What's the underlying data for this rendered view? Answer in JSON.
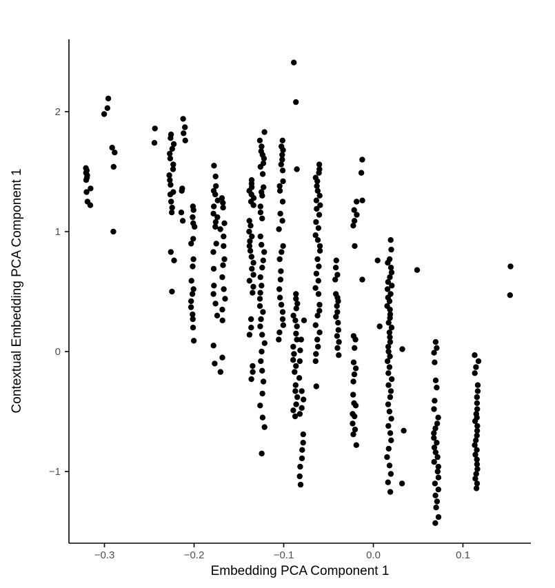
{
  "figure": {
    "background": "#ffffff",
    "point_color": "#000000",
    "axis_line_color": "#000000",
    "tick_label_color": "#4d4d4d",
    "axis_title_color": "#000000"
  },
  "chart_data": {
    "type": "scatter",
    "title": "",
    "xlabel": "Embedding PCA Component 1",
    "ylabel": "Contextual Embedding PCA Component 1",
    "xlim": [
      -0.34,
      0.177
    ],
    "ylim": [
      -1.57,
      2.6
    ],
    "grid": "off",
    "legend": "none",
    "x_ticks": {
      "values": [
        -0.3,
        -0.2,
        -0.1,
        0.0,
        0.1
      ],
      "labels": [
        "−0.3",
        "−0.2",
        "−0.1",
        "0.0",
        "0.1"
      ]
    },
    "y_ticks": {
      "values": [
        -1,
        0,
        1,
        2
      ],
      "labels": [
        "−1",
        "0",
        "1",
        "2"
      ]
    },
    "series": [
      {
        "x": -0.318,
        "ys": [
          1.53,
          1.51,
          1.49,
          1.47,
          1.45,
          1.43,
          1.36,
          1.33,
          1.25,
          1.22
        ]
      },
      {
        "x": -0.298,
        "ys": [
          2.11,
          2.03,
          1.98
        ]
      },
      {
        "x": -0.289,
        "ys": [
          1.7,
          1.66,
          1.54,
          1.0
        ]
      },
      {
        "x": -0.244,
        "ys": [
          1.86,
          1.74
        ]
      },
      {
        "x": -0.225,
        "ys": [
          1.81,
          1.78,
          1.73,
          1.69,
          1.65,
          1.61,
          1.56,
          1.52,
          1.47,
          1.43,
          1.39,
          1.33,
          1.31,
          1.25,
          1.2,
          1.16,
          0.83,
          0.76,
          0.5
        ]
      },
      {
        "x": -0.212,
        "ys": [
          1.94,
          1.87,
          1.82,
          1.76,
          1.36,
          1.34,
          1.16,
          1.09
        ]
      },
      {
        "x": -0.202,
        "ys": [
          1.21,
          1.18,
          1.12,
          1.07,
          1.04,
          0.94,
          0.9,
          0.77,
          0.71,
          0.59,
          0.52,
          0.48,
          0.42,
          0.37,
          0.31,
          0.27,
          0.2,
          0.09
        ]
      },
      {
        "x": -0.176,
        "ys": [
          1.55,
          1.46,
          1.38,
          1.34,
          1.31,
          1.26,
          1.21,
          1.15,
          1.12,
          1.08,
          1.04,
          0.9,
          0.83,
          0.69,
          0.55,
          0.48,
          0.4,
          0.3,
          0.05,
          -0.1
        ]
      },
      {
        "x": -0.168,
        "ys": [
          1.28,
          1.24,
          1.2,
          1.07,
          1.02,
          0.96,
          0.88,
          0.77,
          0.72,
          0.62,
          0.52,
          0.44,
          0.35,
          0.26,
          -0.05,
          -0.17
        ]
      },
      {
        "x": -0.136,
        "ys": [
          1.43,
          1.4,
          1.37,
          1.34,
          1.31,
          1.28,
          1.25,
          1.22,
          1.09,
          1.05,
          1.0,
          0.96,
          0.92,
          0.88,
          0.84,
          0.79,
          0.74,
          0.69,
          0.64,
          0.59,
          0.54,
          0.49,
          0.27,
          0.2,
          0.14,
          -0.12,
          -0.17,
          -0.23
        ]
      },
      {
        "x": -0.124,
        "ys": [
          1.83,
          1.76,
          1.71,
          1.67,
          1.64,
          1.61,
          1.57,
          1.54,
          1.48,
          1.37,
          1.33,
          1.3,
          1.21,
          1.16,
          1.11,
          0.96,
          0.89,
          0.83,
          0.76,
          0.7,
          0.62,
          0.55,
          0.49,
          0.44,
          0.38,
          0.33,
          0.27,
          0.21,
          0.14,
          0.07,
          0.0,
          -0.08,
          -0.16,
          -0.25,
          -0.35,
          -0.45,
          -0.55,
          -0.63,
          -0.85
        ]
      },
      {
        "x": -0.103,
        "ys": [
          1.76,
          1.71,
          1.68,
          1.64,
          1.6,
          1.56,
          1.51,
          1.42,
          1.38,
          1.34,
          1.25,
          1.15,
          1.09,
          1.02,
          0.88,
          0.83,
          0.77,
          0.67,
          0.6,
          0.52,
          0.45,
          0.39,
          0.33,
          0.27,
          0.22,
          0.16,
          0.1
        ]
      },
      {
        "x": -0.087,
        "ys": [
          2.41,
          2.08,
          1.52,
          0.48,
          0.44,
          0.4,
          0.36,
          0.3,
          0.26,
          0.21,
          0.15,
          0.1,
          0.04,
          -0.02,
          -0.07,
          -0.12,
          -0.17,
          -0.28,
          -0.33,
          -0.38,
          -0.44,
          -0.49,
          -0.54
        ]
      },
      {
        "x": -0.08,
        "ys": [
          0.26,
          0.1,
          0.01,
          -0.08,
          -0.22,
          -0.33,
          -0.4,
          -0.47,
          -0.52,
          -0.69,
          -0.76,
          -0.82,
          -0.89,
          -0.96,
          -1.04,
          -1.11
        ]
      },
      {
        "x": -0.062,
        "ys": [
          1.56,
          1.52,
          1.49,
          1.45,
          1.42,
          1.38,
          1.34,
          1.3,
          1.26,
          1.22,
          1.19,
          1.14,
          1.08,
          1.03,
          0.97,
          0.93,
          0.88,
          0.84,
          0.77,
          0.71,
          0.65,
          0.59,
          0.53,
          0.48,
          0.39,
          0.34,
          0.3,
          0.22,
          0.16,
          0.1,
          0.04,
          -0.02,
          -0.08,
          -0.29
        ]
      },
      {
        "x": -0.041,
        "ys": [
          0.76,
          0.7,
          0.64,
          0.6,
          0.48,
          0.45,
          0.42,
          0.38,
          0.33,
          0.29,
          0.24,
          0.18,
          0.13,
          0.08,
          0.03,
          -0.03
        ]
      },
      {
        "x": -0.021,
        "ys": [
          1.25,
          1.18,
          1.14,
          1.09,
          1.05,
          0.88,
          0.13,
          0.1,
          0.03,
          -0.09,
          -0.14,
          -0.19,
          -0.25,
          -0.36,
          -0.43,
          -0.45,
          -0.52,
          -0.54,
          -0.6,
          -0.65,
          -0.69,
          -0.78
        ]
      },
      {
        "x": -0.012,
        "ys": [
          1.6,
          1.49,
          1.26,
          0.6
        ]
      },
      {
        "x": 0.004,
        "ys": [
          0.76
        ]
      },
      {
        "x": 0.008,
        "ys": [
          0.21
        ]
      },
      {
        "x": 0.018,
        "ys": [
          0.93,
          0.85,
          0.77,
          0.74,
          0.7,
          0.66,
          0.62,
          0.58,
          0.55,
          0.52,
          0.48,
          0.45,
          0.42,
          0.38,
          0.35,
          0.31,
          0.28,
          0.24,
          0.2,
          0.16,
          0.12,
          0.08,
          0.04,
          0.0,
          -0.04,
          -0.08,
          -0.13,
          -0.18,
          -0.23,
          -0.28,
          -0.33,
          -0.38,
          -0.44,
          -0.5,
          -0.56,
          -0.62,
          -0.68,
          -0.74,
          -0.81,
          -0.88,
          -0.95,
          -1.02,
          -1.09,
          -1.17
        ]
      },
      {
        "x": 0.032,
        "ys": [
          0.02,
          -0.66,
          -1.1
        ]
      },
      {
        "x": 0.048,
        "ys": [
          0.68
        ]
      },
      {
        "x": 0.07,
        "ys": [
          0.08,
          0.03,
          -0.01,
          -0.09,
          -0.24,
          -0.3,
          -0.41,
          -0.48,
          -0.55,
          -0.6,
          -0.64,
          -0.68,
          -0.72,
          -0.76,
          -0.8,
          -0.84,
          -0.88,
          -0.92,
          -0.96,
          -1.0,
          -1.05,
          -1.1,
          -1.15,
          -1.2,
          -1.25,
          -1.3,
          -1.38,
          -1.43
        ]
      },
      {
        "x": 0.115,
        "ys": [
          -0.03,
          -0.08,
          -0.13,
          -0.18,
          -0.28,
          -0.33,
          -0.38,
          -0.43,
          -0.48,
          -0.52,
          -0.55,
          -0.58,
          -0.62,
          -0.66,
          -0.7,
          -0.74,
          -0.78,
          -0.82,
          -0.86,
          -0.9,
          -0.94,
          -0.98,
          -1.02,
          -1.06,
          -1.1,
          -1.14
        ]
      },
      {
        "x": 0.154,
        "ys": [
          0.71,
          0.47
        ]
      }
    ]
  }
}
